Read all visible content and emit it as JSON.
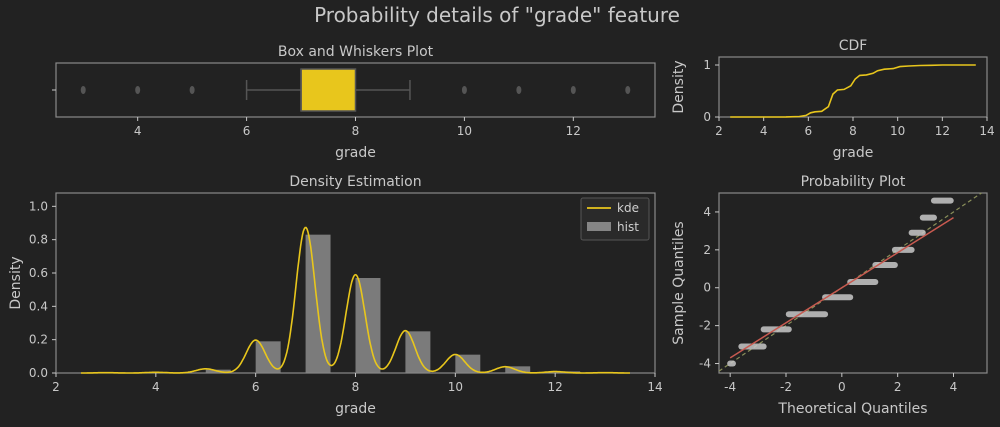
{
  "title": "Probability details of \"grade\" feature",
  "colors": {
    "accent": "#e8c61c",
    "hist": "#858585",
    "fit": "#c85a50",
    "diag": "#8a8f5a",
    "points": "#c8c8c8",
    "frame": "#8a8a8a",
    "bg": "#222222"
  },
  "chart_data": [
    {
      "id": "box",
      "type": "box",
      "title": "Box and Whiskers Plot",
      "xlabel": "grade",
      "ylabel": "",
      "xlim": [
        2.5,
        13.5
      ],
      "xticks": [
        4,
        6,
        8,
        10,
        12
      ],
      "stats": {
        "whisker_low": 6,
        "q1": 7,
        "median": 7,
        "q3": 8,
        "whisker_high": 9
      },
      "outliers": [
        3,
        4,
        5,
        10,
        11,
        12,
        13
      ]
    },
    {
      "id": "cdf",
      "type": "line",
      "title": "CDF",
      "xlabel": "grade",
      "ylabel": "Density",
      "xlim": [
        2,
        14
      ],
      "ylim": [
        0,
        1
      ],
      "xticks": [
        2,
        4,
        6,
        8,
        10,
        12,
        14
      ],
      "yticks": [
        0,
        1
      ],
      "x": [
        2.5,
        4,
        5,
        5.6,
        5.9,
        6.1,
        6.3,
        6.6,
        6.9,
        7.1,
        7.3,
        7.6,
        7.9,
        8.1,
        8.3,
        8.6,
        8.9,
        9.1,
        9.4,
        9.8,
        10.1,
        10.5,
        11,
        11.5,
        12,
        13.5
      ],
      "y": [
        0,
        0,
        0.002,
        0.01,
        0.03,
        0.08,
        0.1,
        0.11,
        0.2,
        0.44,
        0.52,
        0.53,
        0.6,
        0.73,
        0.8,
        0.81,
        0.84,
        0.89,
        0.92,
        0.93,
        0.97,
        0.98,
        0.99,
        0.995,
        1.0,
        1.0
      ]
    },
    {
      "id": "density",
      "type": "bar",
      "title": "Density Estimation",
      "xlabel": "grade",
      "ylabel": "Density",
      "xlim": [
        2,
        14
      ],
      "ylim": [
        0,
        1.08
      ],
      "xticks": [
        2,
        4,
        6,
        8,
        10,
        12,
        14
      ],
      "yticks": [
        0.0,
        0.2,
        0.4,
        0.6,
        0.8,
        1.0
      ],
      "legend": [
        "kde",
        "hist"
      ],
      "legend_position": "top-right",
      "hist": {
        "bin_width": 0.5,
        "bins": [
          {
            "x": 5.0,
            "value": 0.02
          },
          {
            "x": 6.0,
            "value": 0.19
          },
          {
            "x": 7.0,
            "value": 0.83
          },
          {
            "x": 8.0,
            "value": 0.57
          },
          {
            "x": 9.0,
            "value": 0.25
          },
          {
            "x": 10.0,
            "value": 0.11
          },
          {
            "x": 11.0,
            "value": 0.04
          },
          {
            "x": 12.0,
            "value": 0.01
          }
        ]
      },
      "kde": {
        "bandwidth": 0.19,
        "xrange": [
          2.5,
          13.5
        ],
        "components": [
          {
            "mu": 3,
            "weight": 0.001
          },
          {
            "mu": 4,
            "weight": 0.002
          },
          {
            "mu": 5,
            "weight": 0.012
          },
          {
            "mu": 6,
            "weight": 0.094
          },
          {
            "mu": 7,
            "weight": 0.416
          },
          {
            "mu": 8,
            "weight": 0.281
          },
          {
            "mu": 9,
            "weight": 0.121
          },
          {
            "mu": 10,
            "weight": 0.053
          },
          {
            "mu": 11,
            "weight": 0.018
          },
          {
            "mu": 12,
            "weight": 0.004
          },
          {
            "mu": 13,
            "weight": 0.001
          }
        ]
      }
    },
    {
      "id": "probplot",
      "type": "scatter",
      "title": "Probability Plot",
      "xlabel": "Theoretical Quantiles",
      "ylabel": "Sample Quantiles",
      "xlim": [
        -4.4,
        5.2
      ],
      "ylim": [
        -4.5,
        5.0
      ],
      "xticks": [
        -4,
        -2,
        0,
        2,
        4
      ],
      "yticks": [
        -4,
        -2,
        0,
        2,
        4
      ],
      "fit_line": {
        "x": [
          -4.0,
          4.0
        ],
        "y": [
          -3.7,
          3.7
        ]
      },
      "diagonal": {
        "x": [
          -4.4,
          5.0
        ],
        "y": [
          -4.4,
          5.0
        ]
      },
      "segments": [
        {
          "y": -4.0,
          "x": [
            -4.0,
            -3.9
          ]
        },
        {
          "y": -3.1,
          "x": [
            -3.6,
            -2.8
          ]
        },
        {
          "y": -2.2,
          "x": [
            -2.8,
            -1.9
          ]
        },
        {
          "y": -1.4,
          "x": [
            -1.9,
            -0.6
          ]
        },
        {
          "y": -0.5,
          "x": [
            -0.6,
            0.3
          ]
        },
        {
          "y": 0.3,
          "x": [
            0.3,
            1.2
          ]
        },
        {
          "y": 1.2,
          "x": [
            1.2,
            1.9
          ]
        },
        {
          "y": 2.0,
          "x": [
            1.9,
            2.5
          ]
        },
        {
          "y": 2.9,
          "x": [
            2.5,
            2.9
          ]
        },
        {
          "y": 3.7,
          "x": [
            2.9,
            3.3
          ]
        },
        {
          "y": 4.6,
          "x": [
            3.3,
            3.9
          ]
        }
      ]
    }
  ]
}
